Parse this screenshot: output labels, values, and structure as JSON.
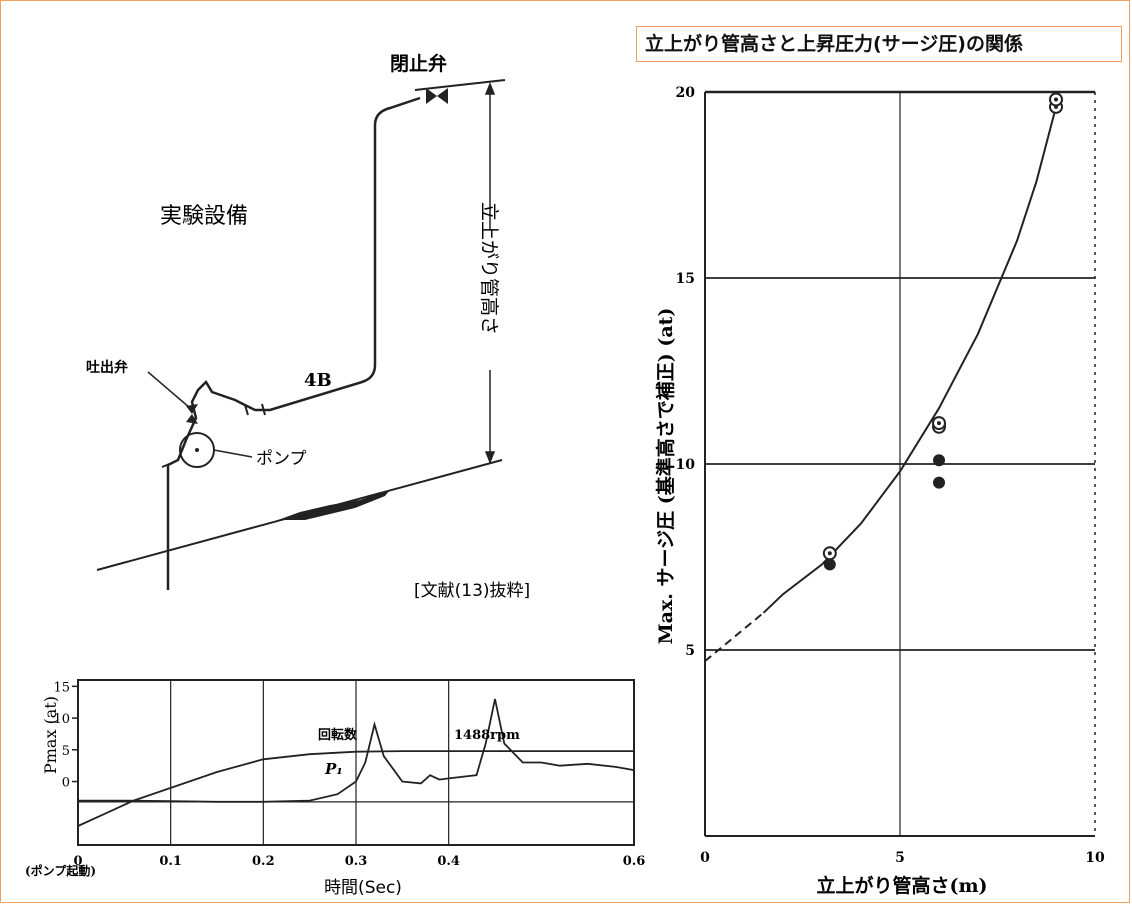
{
  "apparatus": {
    "title": "実験設備",
    "closing_valve_label": "閉止弁",
    "discharge_valve_label": "吐出弁",
    "pipe_size_label": "4B",
    "pump_label": "ポンプ",
    "riser_height_label": "立上がり管高さ",
    "citation": "[文献(13)抜粋]"
  },
  "chart_data": [
    {
      "type": "line",
      "title": "",
      "xlabel": "時間(Sec)",
      "x_origin_note": "(ポンプ起動)",
      "ylabel": "Pmax (at)",
      "xlim": [
        0,
        0.6
      ],
      "ylim": [
        -10,
        16
      ],
      "x_ticks": [
        "0",
        "0.1",
        "0.2",
        "0.3",
        "0.4",
        "0.6"
      ],
      "y_ticks": [
        "15",
        "10",
        "5",
        "0"
      ],
      "grid": true,
      "series": [
        {
          "name": "回転数",
          "annotation": "1488rpm",
          "x": [
            0.0,
            0.03,
            0.06,
            0.1,
            0.15,
            0.2,
            0.25,
            0.3,
            0.35,
            0.4,
            0.45,
            0.5,
            0.55,
            0.6
          ],
          "y": [
            -7,
            -5,
            -3,
            -1,
            1.5,
            3.5,
            4.3,
            4.7,
            4.8,
            4.8,
            4.8,
            4.8,
            4.8,
            4.8
          ]
        },
        {
          "name": "P₁",
          "x": [
            0.0,
            0.05,
            0.1,
            0.15,
            0.2,
            0.25,
            0.28,
            0.3,
            0.31,
            0.32,
            0.33,
            0.35,
            0.37,
            0.38,
            0.39,
            0.4,
            0.43,
            0.44,
            0.45,
            0.46,
            0.48,
            0.5,
            0.52,
            0.55,
            0.58,
            0.6
          ],
          "y": [
            -3,
            -3,
            -3.1,
            -3.2,
            -3.2,
            -3,
            -2,
            0,
            3,
            9,
            4,
            0,
            -0.3,
            1,
            0.3,
            0.5,
            1,
            6,
            13,
            6,
            3,
            3,
            2.5,
            2.8,
            2.3,
            1.8
          ]
        }
      ]
    },
    {
      "type": "scatter",
      "title": "立上がり管高さと上昇圧力(サージ圧)の関係",
      "xlabel": "立上がり管高さ(m)",
      "ylabel": "Max. サージ圧 (基準高さで補正) (at)",
      "xlim": [
        0,
        10
      ],
      "ylim": [
        0,
        20
      ],
      "x_ticks": [
        "0",
        "5",
        "10"
      ],
      "y_ticks": [
        "5",
        "10",
        "15",
        "20"
      ],
      "grid": true,
      "points_open": [
        {
          "x": 3.2,
          "y": 7.6
        },
        {
          "x": 6.0,
          "y": 11.0
        },
        {
          "x": 6.0,
          "y": 11.1
        },
        {
          "x": 9.0,
          "y": 19.6
        },
        {
          "x": 9.0,
          "y": 19.8
        }
      ],
      "points_filled": [
        {
          "x": 3.2,
          "y": 7.3
        },
        {
          "x": 6.0,
          "y": 10.1
        },
        {
          "x": 6.0,
          "y": 9.5
        }
      ],
      "fit_curve": {
        "x": [
          1.5,
          2,
          3,
          4,
          5,
          6,
          7,
          8,
          8.5,
          9
        ],
        "y": [
          6.0,
          6.5,
          7.3,
          8.4,
          9.8,
          11.5,
          13.5,
          16.0,
          17.6,
          19.6
        ]
      },
      "extrapolation": {
        "x": [
          0.0,
          1.5
        ],
        "y": [
          4.7,
          6.0
        ]
      }
    }
  ]
}
